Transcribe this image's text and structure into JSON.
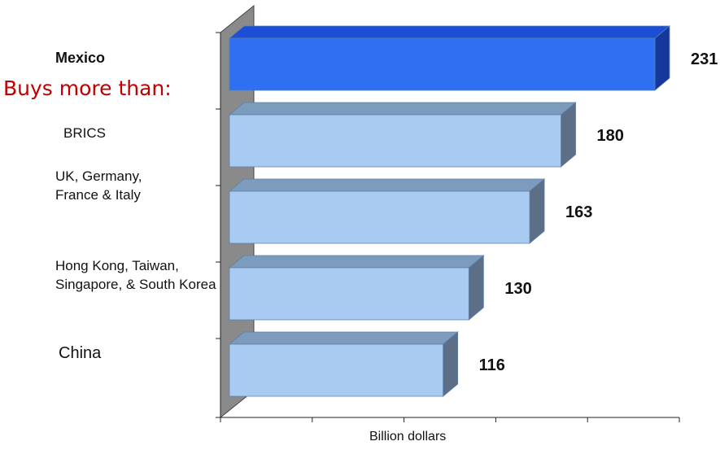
{
  "chart_data": {
    "type": "bar",
    "orientation": "horizontal",
    "style": "3d",
    "subtitle": "Buys more than:",
    "xlabel": "Billion dollars",
    "ylabel": "",
    "xlim": [
      0,
      250
    ],
    "categories": [
      "Mexico",
      "BRICS",
      "UK, Germany, France & Italy",
      "Hong Kong, Taiwan, Singapore, & South Korea",
      "China"
    ],
    "values": [
      231,
      180,
      163,
      130,
      116
    ],
    "data_labels": [
      "231",
      "180",
      "163",
      "130",
      "116"
    ],
    "highlight_category": "Mexico",
    "colors": {
      "highlight_front": "#2f6ff2",
      "highlight_top": "#1d4fd6",
      "highlight_side": "#16389c",
      "bar_front": "#a9cbf1",
      "bar_top": "#7d9bbd",
      "bar_side": "#5c6f86",
      "wall": "#8a8a8a",
      "subtitle": "#c00000"
    },
    "grid": false,
    "legend": "none"
  }
}
